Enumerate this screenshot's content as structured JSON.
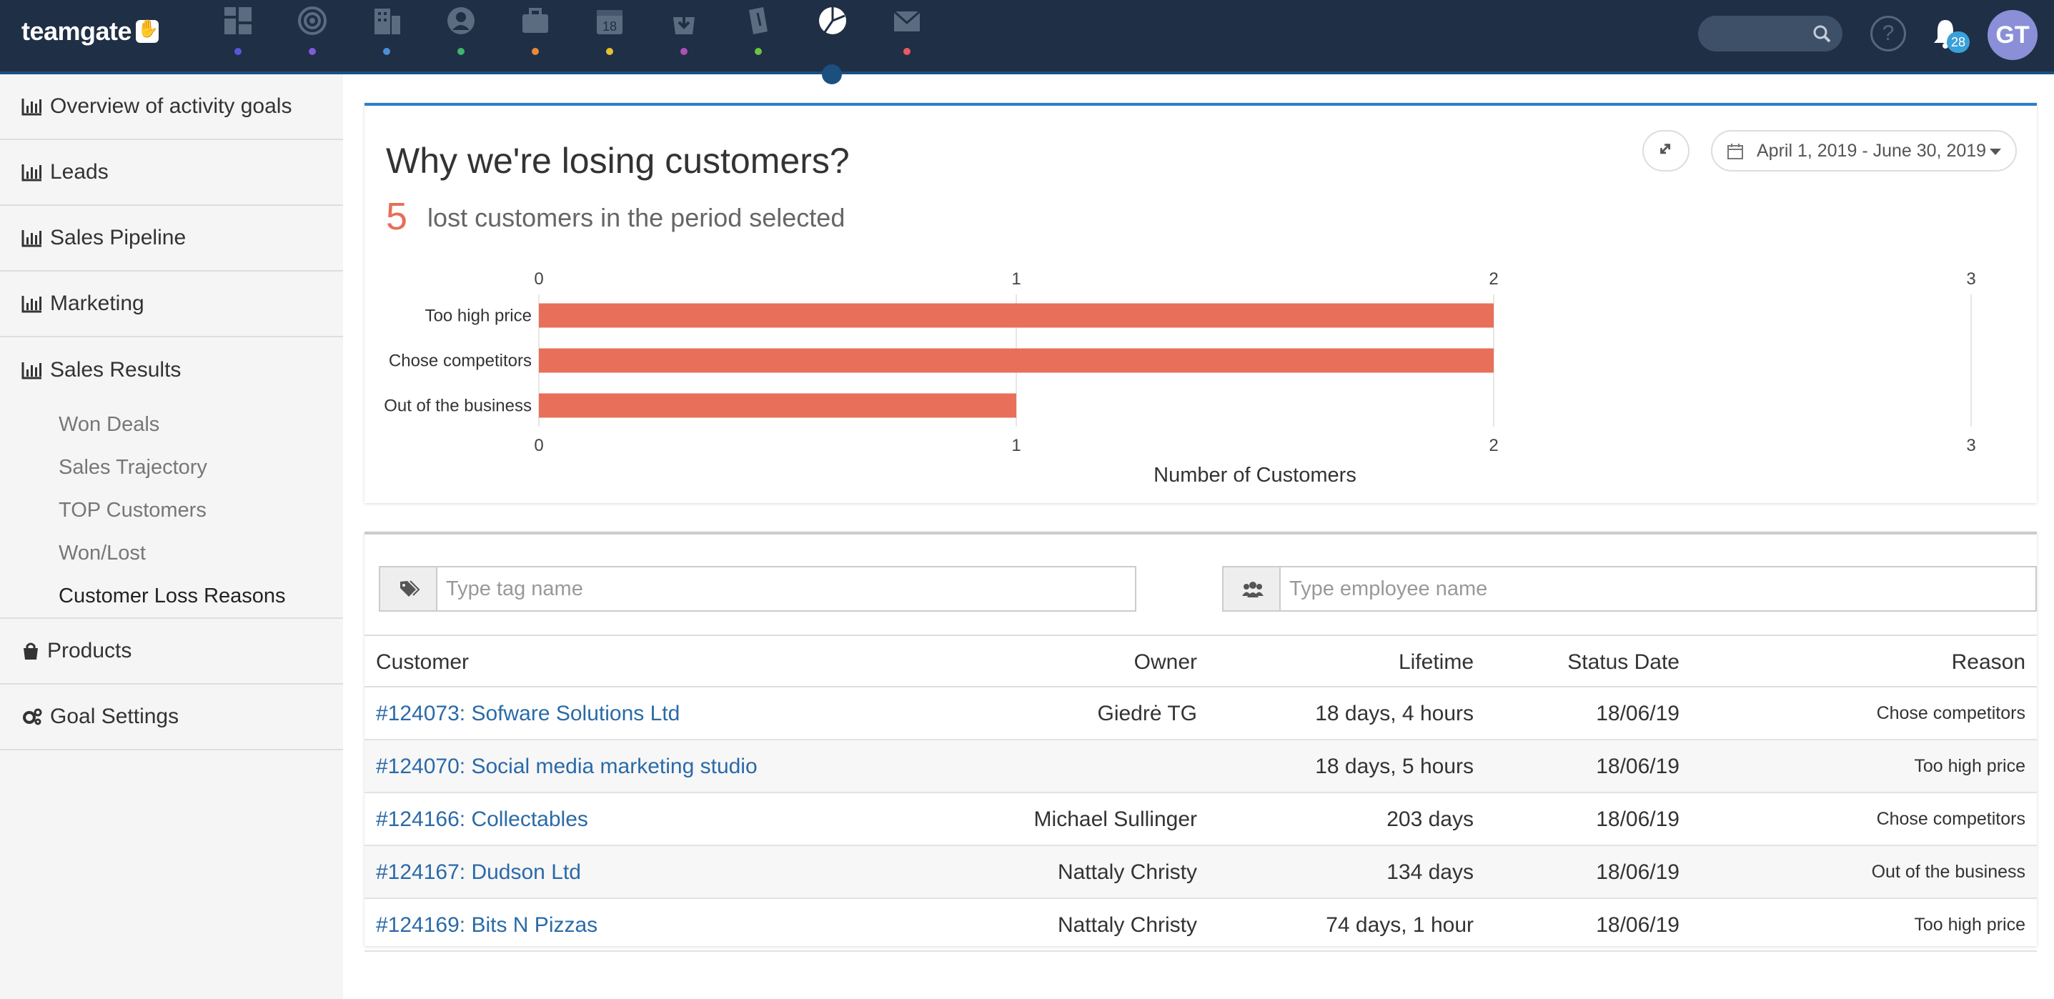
{
  "app": {
    "logo_text": "teamgate"
  },
  "topnav": {
    "items": [
      {
        "icon": "dashboard-icon",
        "dot_color": "#5b56d8"
      },
      {
        "icon": "target-icon",
        "dot_color": "#7e5bd8"
      },
      {
        "icon": "building-icon",
        "dot_color": "#4a90d9"
      },
      {
        "icon": "person-icon",
        "dot_color": "#3fb56b"
      },
      {
        "icon": "briefcase-icon",
        "dot_color": "#e88a3a"
      },
      {
        "icon": "calendar-icon",
        "dot_color": "#e8c12e",
        "label": "18"
      },
      {
        "icon": "download-bag-icon",
        "dot_color": "#b04fb6"
      },
      {
        "icon": "attachment-icon",
        "dot_color": "#6cc43f"
      },
      {
        "icon": "pie-chart-icon",
        "dot_color": "",
        "active": true
      },
      {
        "icon": "mail-icon",
        "dot_color": "#e85a63"
      }
    ],
    "notifications_count": "28",
    "help_label": "?",
    "avatar_initials": "GT"
  },
  "sidebar": {
    "items": [
      {
        "label": "Overview of activity goals",
        "icon": "bar-chart-icon"
      },
      {
        "label": "Leads",
        "icon": "bar-chart-icon"
      },
      {
        "label": "Sales Pipeline",
        "icon": "bar-chart-icon"
      },
      {
        "label": "Marketing",
        "icon": "bar-chart-icon"
      },
      {
        "label": "Sales Results",
        "icon": "bar-chart-icon"
      },
      {
        "label": "Products",
        "icon": "shopping-bag-icon"
      },
      {
        "label": "Goal Settings",
        "icon": "gears-icon"
      }
    ],
    "sub_items": [
      {
        "label": "Won Deals"
      },
      {
        "label": "Sales Trajectory"
      },
      {
        "label": "TOP Customers"
      },
      {
        "label": "Won/Lost"
      },
      {
        "label": "Customer Loss Reasons",
        "active": true
      }
    ]
  },
  "report": {
    "title": "Why we're losing customers?",
    "lost_count": "5",
    "lost_text": "lost customers in the period selected",
    "date_range": "April 1, 2019 - June 30, 2019"
  },
  "chart_data": {
    "type": "bar",
    "orientation": "horizontal",
    "categories": [
      "Too high price",
      "Chose competitors",
      "Out of the business"
    ],
    "values": [
      2,
      2,
      1
    ],
    "xlabel": "Number of Customers",
    "ylabel": "",
    "xlim": [
      0,
      3
    ],
    "ticks": [
      "0",
      "1",
      "2",
      "3"
    ],
    "bar_color": "#e8705a",
    "grid": true
  },
  "filters": {
    "tag_placeholder": "Type tag name",
    "employee_placeholder": "Type employee name"
  },
  "table": {
    "headers": {
      "customer": "Customer",
      "owner": "Owner",
      "lifetime": "Lifetime",
      "status_date": "Status Date",
      "reason": "Reason"
    },
    "rows": [
      {
        "customer": "#124073: Sofware Solutions Ltd",
        "owner": "Giedrė TG",
        "lifetime": "18 days, 4 hours",
        "status_date": "18/06/19",
        "reason": "Chose competitors"
      },
      {
        "customer": "#124070: Social media marketing studio",
        "owner": "",
        "lifetime": "18 days, 5 hours",
        "status_date": "18/06/19",
        "reason": "Too high price"
      },
      {
        "customer": "#124166: Collectables",
        "owner": "Michael Sullinger",
        "lifetime": "203 days",
        "status_date": "18/06/19",
        "reason": "Chose competitors"
      },
      {
        "customer": "#124167: Dudson Ltd",
        "owner": "Nattaly Christy",
        "lifetime": "134 days",
        "status_date": "18/06/19",
        "reason": "Out of the business"
      },
      {
        "customer": "#124169: Bits N Pizzas",
        "owner": "Nattaly Christy",
        "lifetime": "74 days, 1 hour",
        "status_date": "18/06/19",
        "reason": "Too high price"
      }
    ]
  }
}
